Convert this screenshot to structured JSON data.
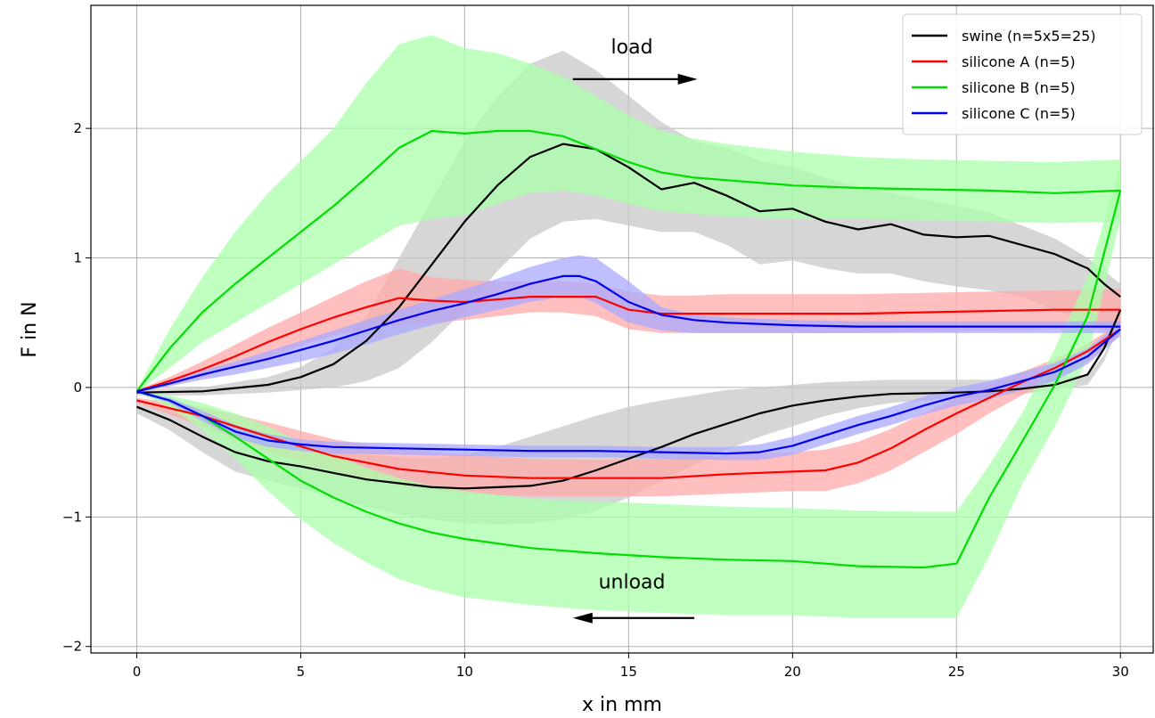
{
  "chart_data": {
    "type": "line",
    "title": "",
    "xlabel": "x in mm",
    "ylabel": "F in N",
    "xlim": [
      -1.4,
      31.0
    ],
    "ylim": [
      -2.05,
      2.95
    ],
    "xticks": [
      0,
      5,
      10,
      15,
      20,
      25,
      30
    ],
    "yticks": [
      -2,
      -1,
      0,
      1,
      2
    ],
    "xtick_labels": [
      "0",
      "5",
      "10",
      "15",
      "20",
      "25",
      "30"
    ],
    "ytick_labels": [
      "−2",
      "−1",
      "0",
      "1",
      "2"
    ],
    "grid": true,
    "legend_position": "top-right",
    "annotations": [
      {
        "text": "load",
        "x": 13.3,
        "y": 2.38,
        "arrow_from": [
          13.3,
          2.38
        ],
        "arrow_to": [
          17.1,
          2.38
        ],
        "text_pos": [
          15.1,
          2.58
        ]
      },
      {
        "text": "unload",
        "x": 17.0,
        "y": -1.78,
        "arrow_from": [
          17.0,
          -1.78
        ],
        "arrow_to": [
          13.3,
          -1.78
        ],
        "text_pos": [
          15.1,
          -1.55
        ]
      }
    ],
    "series": [
      {
        "name": "swine (n=5x5=25)",
        "color": "#000000",
        "band_color": "#c8c8c8",
        "load_x": [
          0,
          2,
          4,
          5,
          6,
          7,
          8,
          9,
          10,
          11,
          12,
          13,
          14,
          15,
          16,
          17,
          18,
          19,
          20,
          21,
          22,
          23,
          24,
          25,
          26,
          27,
          28,
          29,
          29.5,
          30
        ],
        "load_y": [
          -0.04,
          -0.03,
          0.02,
          0.08,
          0.18,
          0.36,
          0.62,
          0.95,
          1.28,
          1.56,
          1.78,
          1.88,
          1.84,
          1.7,
          1.53,
          1.58,
          1.48,
          1.36,
          1.38,
          1.28,
          1.22,
          1.26,
          1.18,
          1.16,
          1.17,
          1.1,
          1.03,
          0.92,
          0.8,
          0.7
        ],
        "load_upper": [
          -0.02,
          0.0,
          0.08,
          0.16,
          0.3,
          0.55,
          1.0,
          1.45,
          1.9,
          2.25,
          2.5,
          2.6,
          2.45,
          2.25,
          2.05,
          1.9,
          1.85,
          1.75,
          1.7,
          1.62,
          1.55,
          1.5,
          1.45,
          1.4,
          1.35,
          1.25,
          1.15,
          1.0,
          0.9,
          0.8
        ],
        "load_lower": [
          -0.06,
          -0.06,
          -0.04,
          -0.02,
          0.0,
          0.05,
          0.15,
          0.35,
          0.6,
          0.9,
          1.15,
          1.28,
          1.3,
          1.25,
          1.2,
          1.2,
          1.1,
          0.95,
          0.98,
          0.92,
          0.88,
          0.88,
          0.82,
          0.78,
          0.75,
          0.7,
          0.6,
          0.5,
          0.45,
          0.4
        ],
        "unload_x": [
          0,
          1,
          2,
          3,
          4,
          5,
          6,
          7,
          8,
          9,
          10,
          11,
          12,
          13,
          14,
          15,
          16,
          17,
          18,
          19,
          20,
          21,
          22,
          23,
          24,
          25,
          26,
          27,
          28,
          29,
          29.5,
          30
        ],
        "unload_y": [
          -0.15,
          -0.25,
          -0.38,
          -0.5,
          -0.57,
          -0.61,
          -0.66,
          -0.71,
          -0.74,
          -0.77,
          -0.78,
          -0.77,
          -0.76,
          -0.72,
          -0.64,
          -0.55,
          -0.46,
          -0.36,
          -0.28,
          -0.2,
          -0.14,
          -0.1,
          -0.07,
          -0.05,
          -0.045,
          -0.04,
          -0.03,
          -0.01,
          0.02,
          0.1,
          0.3,
          0.6
        ],
        "unload_upper": [
          -0.12,
          -0.18,
          -0.27,
          -0.37,
          -0.42,
          -0.46,
          -0.5,
          -0.52,
          -0.54,
          -0.55,
          -0.52,
          -0.46,
          -0.38,
          -0.3,
          -0.22,
          -0.15,
          -0.1,
          -0.06,
          -0.02,
          0.0,
          0.02,
          0.04,
          0.05,
          0.06,
          0.06,
          0.06,
          0.06,
          0.06,
          0.07,
          0.1,
          0.25,
          0.55
        ],
        "unload_lower": [
          -0.2,
          -0.33,
          -0.5,
          -0.65,
          -0.72,
          -0.78,
          -0.85,
          -0.92,
          -0.98,
          -1.02,
          -1.05,
          -1.06,
          -1.05,
          -1.02,
          -0.95,
          -0.85,
          -0.72,
          -0.6,
          -0.48,
          -0.38,
          -0.3,
          -0.22,
          -0.16,
          -0.12,
          -0.1,
          -0.08,
          -0.07,
          -0.05,
          -0.02,
          0.02,
          0.2,
          0.5
        ]
      },
      {
        "name": "silicone A (n=5)",
        "color": "#ff0000",
        "band_color": "#ffaaaa",
        "load_x": [
          0,
          1,
          2,
          3,
          4,
          5,
          6,
          7,
          8,
          9,
          10,
          11,
          12,
          13,
          14,
          15,
          16,
          17,
          18,
          19,
          20,
          22,
          24,
          26,
          28,
          30
        ],
        "load_y": [
          -0.03,
          0.05,
          0.14,
          0.24,
          0.35,
          0.45,
          0.54,
          0.62,
          0.69,
          0.67,
          0.66,
          0.68,
          0.7,
          0.7,
          0.7,
          0.6,
          0.57,
          0.57,
          0.57,
          0.57,
          0.57,
          0.57,
          0.58,
          0.59,
          0.6,
          0.6
        ],
        "load_upper": [
          -0.02,
          0.08,
          0.2,
          0.33,
          0.46,
          0.58,
          0.7,
          0.82,
          0.92,
          0.85,
          0.83,
          0.82,
          0.82,
          0.82,
          0.8,
          0.74,
          0.71,
          0.71,
          0.72,
          0.72,
          0.72,
          0.72,
          0.73,
          0.74,
          0.75,
          0.76
        ],
        "load_lower": [
          -0.04,
          0.02,
          0.08,
          0.15,
          0.23,
          0.32,
          0.4,
          0.45,
          0.48,
          0.5,
          0.52,
          0.55,
          0.58,
          0.58,
          0.55,
          0.45,
          0.42,
          0.42,
          0.42,
          0.42,
          0.42,
          0.42,
          0.43,
          0.44,
          0.45,
          0.45
        ],
        "unload_x": [
          0,
          2,
          4,
          6,
          8,
          10,
          12,
          14,
          16,
          18,
          20,
          21,
          22,
          23,
          24,
          25,
          26,
          27,
          28,
          29,
          30
        ],
        "unload_y": [
          -0.1,
          -0.22,
          -0.38,
          -0.53,
          -0.63,
          -0.68,
          -0.7,
          -0.7,
          -0.7,
          -0.67,
          -0.65,
          -0.64,
          -0.58,
          -0.47,
          -0.33,
          -0.2,
          -0.08,
          0.04,
          0.15,
          0.28,
          0.45
        ],
        "unload_upper": [
          -0.08,
          -0.15,
          -0.27,
          -0.4,
          -0.48,
          -0.52,
          -0.55,
          -0.56,
          -0.55,
          -0.52,
          -0.5,
          -0.48,
          -0.42,
          -0.32,
          -0.2,
          -0.08,
          0.02,
          0.12,
          0.22,
          0.34,
          0.5
        ],
        "unload_lower": [
          -0.12,
          -0.3,
          -0.5,
          -0.65,
          -0.76,
          -0.82,
          -0.84,
          -0.84,
          -0.84,
          -0.82,
          -0.8,
          -0.8,
          -0.74,
          -0.64,
          -0.5,
          -0.36,
          -0.2,
          -0.06,
          0.06,
          0.2,
          0.4
        ]
      },
      {
        "name": "silicone B (n=5)",
        "color": "#00dd00",
        "band_color": "#aaffaa",
        "load_x": [
          0,
          1,
          2,
          3,
          4,
          5,
          6,
          7,
          8,
          9,
          10,
          11,
          12,
          13,
          14,
          15,
          16,
          17,
          18,
          20,
          22,
          24,
          26,
          28,
          30
        ],
        "load_y": [
          -0.03,
          0.3,
          0.58,
          0.8,
          1.0,
          1.2,
          1.4,
          1.62,
          1.85,
          1.98,
          1.96,
          1.98,
          1.98,
          1.94,
          1.84,
          1.74,
          1.66,
          1.62,
          1.6,
          1.56,
          1.54,
          1.53,
          1.52,
          1.5,
          1.52
        ],
        "load_upper": [
          -0.02,
          0.45,
          0.85,
          1.2,
          1.5,
          1.75,
          2.0,
          2.35,
          2.65,
          2.72,
          2.62,
          2.58,
          2.5,
          2.4,
          2.25,
          2.1,
          1.98,
          1.92,
          1.88,
          1.82,
          1.78,
          1.76,
          1.75,
          1.74,
          1.76
        ],
        "load_lower": [
          -0.04,
          0.15,
          0.35,
          0.5,
          0.65,
          0.8,
          0.95,
          1.1,
          1.25,
          1.3,
          1.33,
          1.42,
          1.5,
          1.52,
          1.48,
          1.42,
          1.36,
          1.34,
          1.32,
          1.3,
          1.3,
          1.29,
          1.28,
          1.27,
          1.28
        ],
        "unload_x": [
          0,
          1,
          2,
          3,
          4,
          5,
          6,
          7,
          8,
          9,
          10,
          12,
          14,
          16,
          18,
          20,
          22,
          24,
          25,
          26,
          27,
          28,
          29,
          30
        ],
        "unload_y": [
          -0.03,
          -0.1,
          -0.22,
          -0.38,
          -0.55,
          -0.72,
          -0.85,
          -0.96,
          -1.05,
          -1.12,
          -1.17,
          -1.24,
          -1.28,
          -1.31,
          -1.33,
          -1.34,
          -1.38,
          -1.39,
          -1.36,
          -0.85,
          -0.42,
          0.02,
          0.55,
          1.52
        ],
        "unload_upper": [
          -0.02,
          -0.06,
          -0.12,
          -0.2,
          -0.3,
          -0.42,
          -0.52,
          -0.62,
          -0.7,
          -0.76,
          -0.8,
          -0.86,
          -0.88,
          -0.9,
          -0.92,
          -0.93,
          -0.95,
          -0.96,
          -0.96,
          -0.6,
          -0.2,
          0.3,
          0.85,
          1.72
        ],
        "unload_lower": [
          -0.04,
          -0.15,
          -0.33,
          -0.55,
          -0.8,
          -1.02,
          -1.2,
          -1.35,
          -1.48,
          -1.56,
          -1.62,
          -1.68,
          -1.72,
          -1.74,
          -1.76,
          -1.76,
          -1.78,
          -1.78,
          -1.78,
          -1.3,
          -0.75,
          -0.3,
          0.22,
          1.3
        ]
      },
      {
        "name": "silicone C (n=5)",
        "color": "#0000ee",
        "band_color": "#aaaaff",
        "load_x": [
          0,
          1,
          2,
          3,
          4,
          5,
          6,
          7,
          8,
          9,
          10,
          11,
          12,
          13,
          13.5,
          14,
          15,
          16,
          17,
          18,
          20,
          22,
          24,
          26,
          28,
          30
        ],
        "load_y": [
          -0.03,
          0.03,
          0.1,
          0.16,
          0.22,
          0.29,
          0.36,
          0.44,
          0.52,
          0.59,
          0.65,
          0.72,
          0.8,
          0.86,
          0.86,
          0.82,
          0.66,
          0.56,
          0.52,
          0.5,
          0.48,
          0.47,
          0.47,
          0.47,
          0.47,
          0.47
        ],
        "load_upper": [
          -0.02,
          0.05,
          0.13,
          0.2,
          0.28,
          0.36,
          0.44,
          0.52,
          0.6,
          0.68,
          0.76,
          0.84,
          0.93,
          1.0,
          1.02,
          1.0,
          0.82,
          0.62,
          0.56,
          0.54,
          0.52,
          0.51,
          0.51,
          0.51,
          0.51,
          0.51
        ],
        "load_lower": [
          -0.04,
          0.01,
          0.06,
          0.1,
          0.15,
          0.2,
          0.26,
          0.33,
          0.41,
          0.48,
          0.54,
          0.6,
          0.66,
          0.7,
          0.7,
          0.65,
          0.5,
          0.44,
          0.42,
          0.42,
          0.42,
          0.42,
          0.42,
          0.42,
          0.42,
          0.42
        ],
        "unload_x": [
          0,
          1,
          2,
          3,
          4,
          5,
          6,
          8,
          10,
          12,
          14,
          16,
          18,
          19,
          20,
          21,
          22,
          23,
          24,
          25,
          26,
          27,
          28,
          29,
          30
        ],
        "unload_y": [
          -0.03,
          -0.1,
          -0.22,
          -0.34,
          -0.41,
          -0.44,
          -0.46,
          -0.47,
          -0.48,
          -0.49,
          -0.49,
          -0.5,
          -0.51,
          -0.5,
          -0.45,
          -0.37,
          -0.29,
          -0.22,
          -0.14,
          -0.07,
          -0.02,
          0.05,
          0.12,
          0.24,
          0.45
        ],
        "unload_upper": [
          -0.02,
          -0.08,
          -0.18,
          -0.29,
          -0.36,
          -0.4,
          -0.42,
          -0.43,
          -0.44,
          -0.45,
          -0.45,
          -0.46,
          -0.46,
          -0.44,
          -0.38,
          -0.3,
          -0.22,
          -0.15,
          -0.07,
          0.0,
          0.05,
          0.12,
          0.19,
          0.3,
          0.5
        ],
        "unload_lower": [
          -0.04,
          -0.12,
          -0.26,
          -0.39,
          -0.46,
          -0.49,
          -0.51,
          -0.52,
          -0.53,
          -0.54,
          -0.54,
          -0.55,
          -0.56,
          -0.56,
          -0.52,
          -0.44,
          -0.36,
          -0.29,
          -0.21,
          -0.14,
          -0.09,
          -0.02,
          0.05,
          0.18,
          0.4
        ]
      }
    ]
  }
}
